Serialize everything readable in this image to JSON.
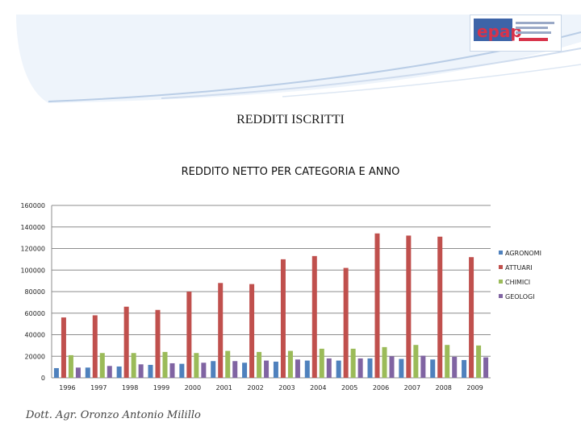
{
  "slide": {
    "title": "REDDITI ISCRITTI",
    "footer": "Dott. Agr. Oronzo Antonio Milillo"
  },
  "logo": {
    "text": "epap"
  },
  "colors": {
    "banner_light": "#eef4fb",
    "banner_swirl": "#b9cde6",
    "axis": "#9a9a9a"
  },
  "chart_data": {
    "type": "bar",
    "title": "REDDITO NETTO PER CATEGORIA E ANNO",
    "xlabel": "",
    "ylabel": "",
    "categories": [
      "1996",
      "1997",
      "1998",
      "1999",
      "2000",
      "2001",
      "2002",
      "2003",
      "2004",
      "2005",
      "2006",
      "2007",
      "2008",
      "2009"
    ],
    "ylim": [
      0,
      160000
    ],
    "yticks": [
      0,
      20000,
      40000,
      60000,
      80000,
      100000,
      120000,
      140000,
      160000
    ],
    "grid": true,
    "legend_position": "right",
    "series": [
      {
        "name": "AGRONOMI",
        "color": "#4f81bd",
        "values": [
          9000,
          9500,
          10500,
          12000,
          13000,
          15500,
          14000,
          15000,
          16000,
          16000,
          18000,
          17500,
          17000,
          16500
        ]
      },
      {
        "name": "ATTUARI",
        "color": "#c0504d",
        "values": [
          56000,
          58000,
          66000,
          63000,
          80000,
          88000,
          87000,
          110000,
          113000,
          102000,
          134000,
          132000,
          131000,
          112000
        ]
      },
      {
        "name": "CHIMICI",
        "color": "#9bbb59",
        "values": [
          21000,
          23000,
          23000,
          24000,
          23000,
          25000,
          24000,
          25000,
          27000,
          27000,
          28500,
          30500,
          30500,
          30000
        ]
      },
      {
        "name": "GEOLOGI",
        "color": "#8064a2",
        "values": [
          9500,
          11000,
          12500,
          13500,
          14000,
          15500,
          16000,
          17000,
          18000,
          18000,
          20000,
          20500,
          19500,
          19000
        ]
      }
    ]
  }
}
